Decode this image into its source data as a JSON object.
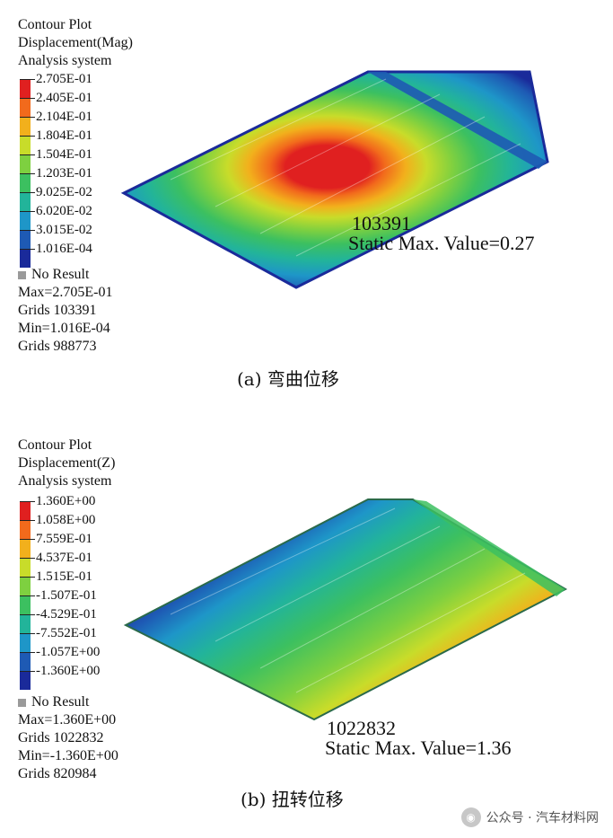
{
  "panel_a": {
    "header": [
      "Contour Plot",
      "Displacement(Mag)",
      "Analysis system"
    ],
    "legend_ticks": [
      "2.705E-01",
      "2.405E-01",
      "2.104E-01",
      "1.804E-01",
      "1.504E-01",
      "1.203E-01",
      "9.025E-02",
      "6.020E-02",
      "3.015E-02",
      "1.016E-04"
    ],
    "legend_colors": [
      "#e02020",
      "#f26a1c",
      "#f2b01c",
      "#c8dc2a",
      "#7ed040",
      "#3cc060",
      "#22b49a",
      "#1e96c8",
      "#1e5ab4",
      "#1a2a9a"
    ],
    "no_result": "No Result",
    "stats": [
      "Max=2.705E-01",
      "Grids 103391",
      "Min=1.016E-04",
      "Grids 988773"
    ],
    "annotation_node": "103391",
    "annotation_value": "Static Max. Value=0.27",
    "caption": "(a) 弯曲位移"
  },
  "panel_b": {
    "header": [
      "Contour Plot",
      "Displacement(Z)",
      "Analysis system"
    ],
    "legend_ticks": [
      "1.360E+00",
      "1.058E+00",
      "7.559E-01",
      "4.537E-01",
      "1.515E-01",
      "-1.507E-01",
      "-4.529E-01",
      "-7.552E-01",
      "-1.057E+00",
      "-1.360E+00"
    ],
    "legend_colors": [
      "#e02020",
      "#f26a1c",
      "#f2b01c",
      "#c8dc2a",
      "#7ed040",
      "#3cc060",
      "#22b49a",
      "#1e96c8",
      "#1e5ab4",
      "#1a2a9a"
    ],
    "no_result": "No Result",
    "stats": [
      "Max=1.360E+00",
      "Grids 1022832",
      "Min=-1.360E+00",
      "Grids 820984"
    ],
    "annotation_node": "1022832",
    "annotation_value": "Static Max. Value=1.36",
    "caption": "(b) 扭转位移"
  },
  "watermark": {
    "icon": "wechat-icon",
    "text": "公众号 · 汽车材料网"
  }
}
